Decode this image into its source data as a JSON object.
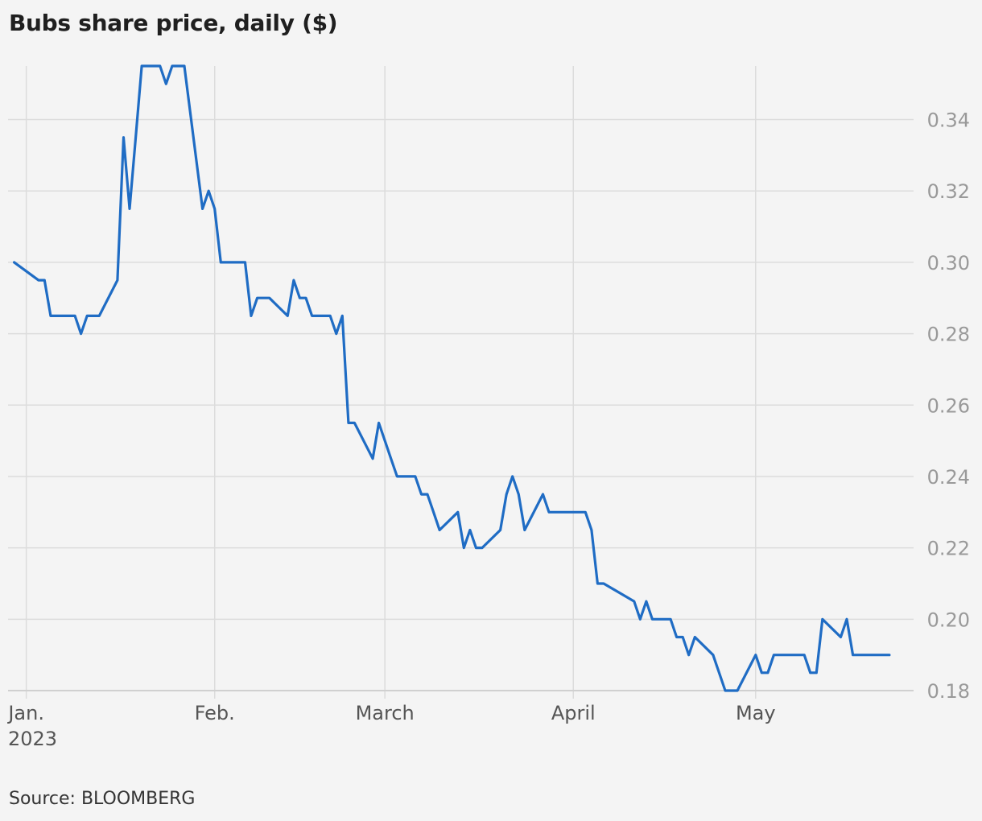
{
  "chart_data": {
    "type": "line",
    "title": "Bubs share price, daily ($)",
    "source": "Source: BLOOMBERG",
    "x_tick_labels": [
      {
        "date": "2023-01-01",
        "lines": [
          "Jan.",
          "2023"
        ]
      },
      {
        "date": "2023-02-01",
        "lines": [
          "Feb."
        ]
      },
      {
        "date": "2023-03-01",
        "lines": [
          "March"
        ]
      },
      {
        "date": "2023-04-01",
        "lines": [
          "April"
        ]
      },
      {
        "date": "2023-05-01",
        "lines": [
          "May"
        ]
      }
    ],
    "y_ticks": [
      "0.18",
      "0.20",
      "0.22",
      "0.24",
      "0.26",
      "0.28",
      "0.30",
      "0.32",
      "0.34"
    ],
    "xlim": [
      "2022-12-29",
      "2023-05-25"
    ],
    "ylim": [
      0.18,
      0.355
    ],
    "axis_position": "right",
    "grid": true,
    "colors": {
      "line": "#1f6cc4",
      "grid": "#dcdcdc",
      "tick_text": "#999999",
      "month_text": "#555555",
      "background": "#f4f4f4"
    },
    "series": [
      {
        "x": [
          "2022-12-30",
          "2023-01-03",
          "2023-01-04",
          "2023-01-05",
          "2023-01-06",
          "2023-01-09",
          "2023-01-10",
          "2023-01-11",
          "2023-01-12",
          "2023-01-13",
          "2023-01-16",
          "2023-01-17",
          "2023-01-18",
          "2023-01-19",
          "2023-01-20",
          "2023-01-23",
          "2023-01-24",
          "2023-01-25",
          "2023-01-26",
          "2023-01-27",
          "2023-01-30",
          "2023-01-31",
          "2023-02-01",
          "2023-02-02",
          "2023-02-03",
          "2023-02-06",
          "2023-02-07",
          "2023-02-08",
          "2023-02-09",
          "2023-02-10",
          "2023-02-13",
          "2023-02-14",
          "2023-02-15",
          "2023-02-16",
          "2023-02-17",
          "2023-02-20",
          "2023-02-21",
          "2023-02-22",
          "2023-02-23",
          "2023-02-24",
          "2023-02-27",
          "2023-02-28",
          "2023-03-01",
          "2023-03-02",
          "2023-03-03",
          "2023-03-06",
          "2023-03-07",
          "2023-03-08",
          "2023-03-09",
          "2023-03-10",
          "2023-03-13",
          "2023-03-14",
          "2023-03-15",
          "2023-03-16",
          "2023-03-17",
          "2023-03-20",
          "2023-03-21",
          "2023-03-22",
          "2023-03-23",
          "2023-03-24",
          "2023-03-27",
          "2023-03-28",
          "2023-03-29",
          "2023-03-30",
          "2023-03-31",
          "2023-04-03",
          "2023-04-04",
          "2023-04-05",
          "2023-04-06",
          "2023-04-11",
          "2023-04-12",
          "2023-04-13",
          "2023-04-14",
          "2023-04-17",
          "2023-04-18",
          "2023-04-19",
          "2023-04-20",
          "2023-04-21",
          "2023-04-24",
          "2023-04-26",
          "2023-04-27",
          "2023-04-28",
          "2023-05-01",
          "2023-05-02",
          "2023-05-03",
          "2023-05-04",
          "2023-05-05",
          "2023-05-08",
          "2023-05-09",
          "2023-05-10",
          "2023-05-11",
          "2023-05-12",
          "2023-05-15",
          "2023-05-16",
          "2023-05-17",
          "2023-05-18",
          "2023-05-19",
          "2023-05-22",
          "2023-05-23"
        ],
        "y": [
          0.3,
          0.295,
          0.295,
          0.285,
          0.285,
          0.285,
          0.28,
          0.285,
          0.285,
          0.285,
          0.295,
          0.335,
          0.315,
          0.335,
          0.355,
          0.355,
          0.35,
          0.355,
          0.355,
          0.355,
          0.315,
          0.32,
          0.315,
          0.3,
          0.3,
          0.3,
          0.285,
          0.29,
          0.29,
          0.29,
          0.285,
          0.295,
          0.29,
          0.29,
          0.285,
          0.285,
          0.28,
          0.285,
          0.255,
          0.255,
          0.245,
          0.255,
          0.25,
          0.245,
          0.24,
          0.24,
          0.235,
          0.235,
          0.23,
          0.225,
          0.23,
          0.22,
          0.225,
          0.22,
          0.22,
          0.225,
          0.235,
          0.24,
          0.235,
          0.225,
          0.235,
          0.23,
          0.23,
          0.23,
          0.23,
          0.23,
          0.225,
          0.21,
          0.21,
          0.205,
          0.2,
          0.205,
          0.2,
          0.2,
          0.195,
          0.195,
          0.19,
          0.195,
          0.19,
          0.18,
          0.18,
          0.18,
          0.19,
          0.185,
          0.185,
          0.19,
          0.19,
          0.19,
          0.19,
          0.185,
          0.185,
          0.2,
          0.195,
          0.2,
          0.19,
          0.19,
          0.19,
          0.19,
          0.19
        ]
      }
    ]
  }
}
